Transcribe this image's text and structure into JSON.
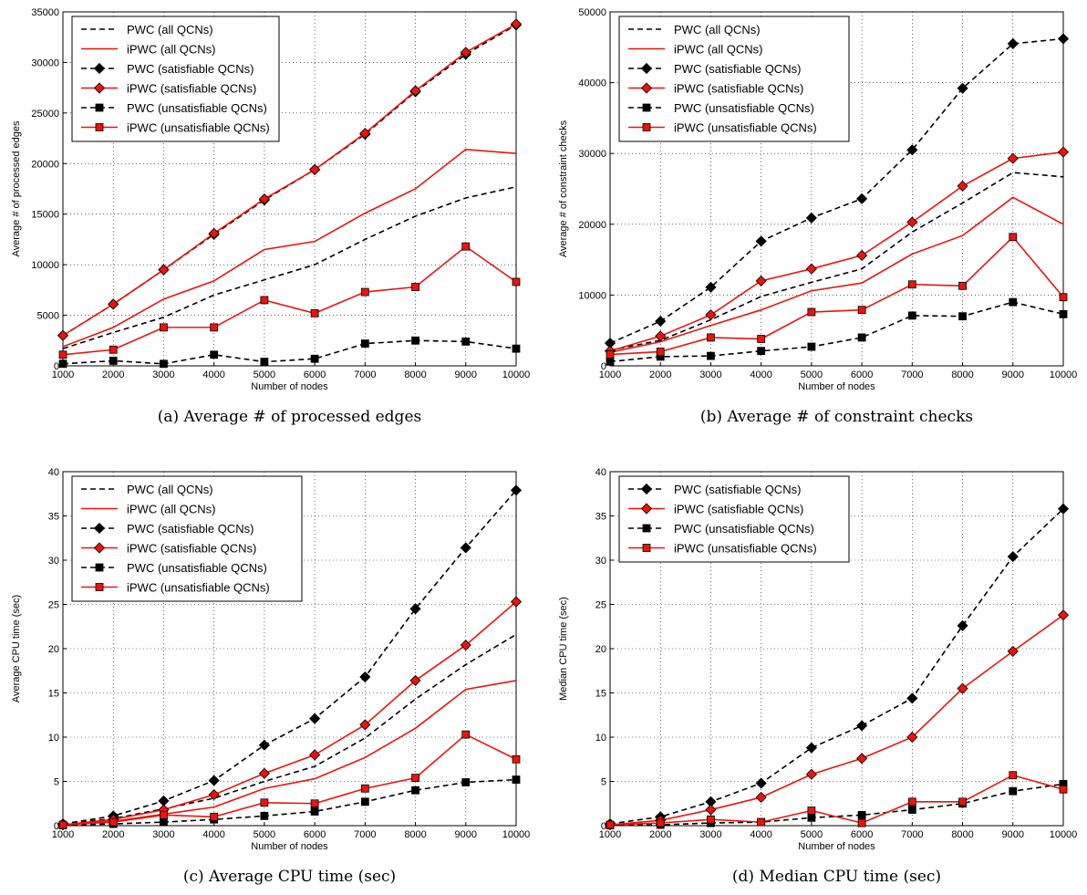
{
  "colors": {
    "black": "#000000",
    "red": "#e8140f"
  },
  "x_label": "Number of nodes",
  "chart_data": [
    {
      "type": "line",
      "caption": "(a) Average # of processed edges",
      "ylabel": "Average # of processed edges",
      "xlim": [
        1000,
        10000
      ],
      "ylim": [
        0,
        35000
      ],
      "yticks": [
        0,
        5000,
        10000,
        15000,
        20000,
        25000,
        30000,
        35000
      ],
      "x": [
        1000,
        2000,
        3000,
        4000,
        5000,
        6000,
        7000,
        8000,
        9000,
        10000
      ],
      "legend": "top-left",
      "grid": true,
      "series": [
        {
          "name": "PWC (all QCNs)",
          "color": "black",
          "dash": true,
          "marker": "none",
          "values": [
            1700,
            3300,
            4800,
            7000,
            8500,
            10000,
            12500,
            14800,
            16600,
            17700
          ]
        },
        {
          "name": "iPWC (all QCNs)",
          "color": "red",
          "dash": false,
          "marker": "none",
          "values": [
            1900,
            3800,
            6600,
            8400,
            11500,
            12300,
            15100,
            17500,
            21400,
            21000
          ]
        },
        {
          "name": "PWC (satisfiable QCNs)",
          "color": "black",
          "dash": true,
          "marker": "diamond",
          "values": [
            3000,
            6100,
            9500,
            13000,
            16400,
            19400,
            22900,
            27100,
            30800,
            33700
          ]
        },
        {
          "name": "iPWC (satisfiable QCNs)",
          "color": "red",
          "dash": false,
          "marker": "diamond",
          "values": [
            3000,
            6100,
            9500,
            13100,
            16500,
            19400,
            23000,
            27200,
            31000,
            33800
          ]
        },
        {
          "name": "PWC (unsatisfiable QCNs)",
          "color": "black",
          "dash": true,
          "marker": "square",
          "values": [
            200,
            500,
            200,
            1100,
            400,
            700,
            2200,
            2500,
            2400,
            1700
          ]
        },
        {
          "name": "iPWC (unsatisfiable QCNs)",
          "color": "red",
          "dash": false,
          "marker": "square",
          "values": [
            1100,
            1600,
            3800,
            3800,
            6500,
            5200,
            7300,
            7800,
            11800,
            8300
          ]
        }
      ]
    },
    {
      "type": "line",
      "caption": "(b) Average # of constraint checks",
      "ylabel": "Average # of constraint checks",
      "xlim": [
        1000,
        10000
      ],
      "ylim": [
        0,
        50000
      ],
      "yticks": [
        0,
        10000,
        20000,
        30000,
        40000,
        50000
      ],
      "x": [
        1000,
        2000,
        3000,
        4000,
        5000,
        6000,
        7000,
        8000,
        9000,
        10000
      ],
      "legend": "top-left",
      "grid": true,
      "series": [
        {
          "name": "PWC (all QCNs)",
          "color": "black",
          "dash": true,
          "marker": "none",
          "values": [
            2200,
            3600,
            6500,
            9800,
            11800,
            13700,
            18900,
            23000,
            27300,
            26700
          ]
        },
        {
          "name": "iPWC (all QCNs)",
          "color": "red",
          "dash": false,
          "marker": "none",
          "values": [
            1900,
            3400,
            5700,
            7900,
            10600,
            11700,
            15800,
            18400,
            23800,
            20000
          ]
        },
        {
          "name": "PWC (satisfiable QCNs)",
          "color": "black",
          "dash": true,
          "marker": "diamond",
          "values": [
            3200,
            6300,
            11100,
            17600,
            20900,
            23600,
            30500,
            39200,
            45500,
            46200
          ]
        },
        {
          "name": "iPWC (satisfiable QCNs)",
          "color": "red",
          "dash": false,
          "marker": "diamond",
          "values": [
            2100,
            4200,
            7200,
            12000,
            13700,
            15600,
            20300,
            25400,
            29300,
            30200
          ]
        },
        {
          "name": "PWC (unsatisfiable QCNs)",
          "color": "black",
          "dash": true,
          "marker": "square",
          "values": [
            600,
            1300,
            1400,
            2100,
            2700,
            4000,
            7100,
            7000,
            9000,
            7300
          ]
        },
        {
          "name": "iPWC (unsatisfiable QCNs)",
          "color": "red",
          "dash": false,
          "marker": "square",
          "values": [
            1600,
            2000,
            4000,
            3800,
            7600,
            7900,
            11500,
            11300,
            18200,
            9700
          ]
        }
      ]
    },
    {
      "type": "line",
      "caption": "(c) Average CPU time (sec)",
      "ylabel": "Average CPU time (sec)",
      "xlim": [
        1000,
        10000
      ],
      "ylim": [
        0,
        40
      ],
      "yticks": [
        0,
        5,
        10,
        15,
        20,
        25,
        30,
        35,
        40
      ],
      "x": [
        1000,
        2000,
        3000,
        4000,
        5000,
        6000,
        7000,
        8000,
        9000,
        10000
      ],
      "legend": "top-left",
      "grid": true,
      "series": [
        {
          "name": "PWC (all QCNs)",
          "color": "black",
          "dash": true,
          "marker": "none",
          "values": [
            0.2,
            0.8,
            1.9,
            3.1,
            5.0,
            6.7,
            9.9,
            14.3,
            18.2,
            21.6
          ]
        },
        {
          "name": "iPWC (all QCNs)",
          "color": "red",
          "dash": false,
          "marker": "none",
          "values": [
            0.1,
            0.5,
            1.3,
            2.1,
            4.2,
            5.3,
            7.7,
            11.0,
            15.4,
            16.4
          ]
        },
        {
          "name": "PWC (satisfiable QCNs)",
          "color": "black",
          "dash": true,
          "marker": "diamond",
          "values": [
            0.2,
            1.1,
            2.8,
            5.1,
            9.1,
            12.1,
            16.8,
            24.5,
            31.4,
            37.9
          ]
        },
        {
          "name": "iPWC (satisfiable QCNs)",
          "color": "red",
          "dash": false,
          "marker": "diamond",
          "values": [
            0.1,
            0.7,
            1.8,
            3.5,
            5.9,
            8.0,
            11.4,
            16.4,
            20.4,
            25.3
          ]
        },
        {
          "name": "PWC (unsatisfiable QCNs)",
          "color": "black",
          "dash": true,
          "marker": "square",
          "values": [
            0.05,
            0.2,
            0.4,
            0.7,
            1.1,
            1.6,
            2.7,
            4.0,
            4.9,
            5.2
          ]
        },
        {
          "name": "iPWC (unsatisfiable QCNs)",
          "color": "red",
          "dash": false,
          "marker": "square",
          "values": [
            0.1,
            0.4,
            1.2,
            1.0,
            2.6,
            2.5,
            4.2,
            5.4,
            10.3,
            7.5
          ]
        }
      ]
    },
    {
      "type": "line",
      "caption": "(d) Median CPU time (sec)",
      "ylabel": "Median CPU time (sec)",
      "xlim": [
        1000,
        10000
      ],
      "ylim": [
        0,
        40
      ],
      "yticks": [
        0,
        5,
        10,
        15,
        20,
        25,
        30,
        35,
        40
      ],
      "x": [
        1000,
        2000,
        3000,
        4000,
        5000,
        6000,
        7000,
        8000,
        9000,
        10000
      ],
      "legend": "top-left",
      "grid": true,
      "series": [
        {
          "name": "PWC (satisfiable QCNs)",
          "color": "black",
          "dash": true,
          "marker": "diamond",
          "values": [
            0.2,
            1.0,
            2.7,
            4.8,
            8.8,
            11.3,
            14.4,
            22.6,
            30.4,
            35.8
          ]
        },
        {
          "name": "iPWC (satisfiable QCNs)",
          "color": "red",
          "dash": false,
          "marker": "diamond",
          "values": [
            0.1,
            0.6,
            1.8,
            3.2,
            5.8,
            7.6,
            10.0,
            15.5,
            19.7,
            23.8
          ]
        },
        {
          "name": "PWC (unsatisfiable QCNs)",
          "color": "black",
          "dash": true,
          "marker": "square",
          "values": [
            0.05,
            0.1,
            0.3,
            0.4,
            0.9,
            1.2,
            1.8,
            2.5,
            3.9,
            4.7
          ]
        },
        {
          "name": "iPWC (unsatisfiable QCNs)",
          "color": "red",
          "dash": false,
          "marker": "square",
          "values": [
            0.1,
            0.3,
            0.7,
            0.4,
            1.7,
            0.3,
            2.7,
            2.7,
            5.7,
            4.1
          ]
        }
      ]
    }
  ]
}
